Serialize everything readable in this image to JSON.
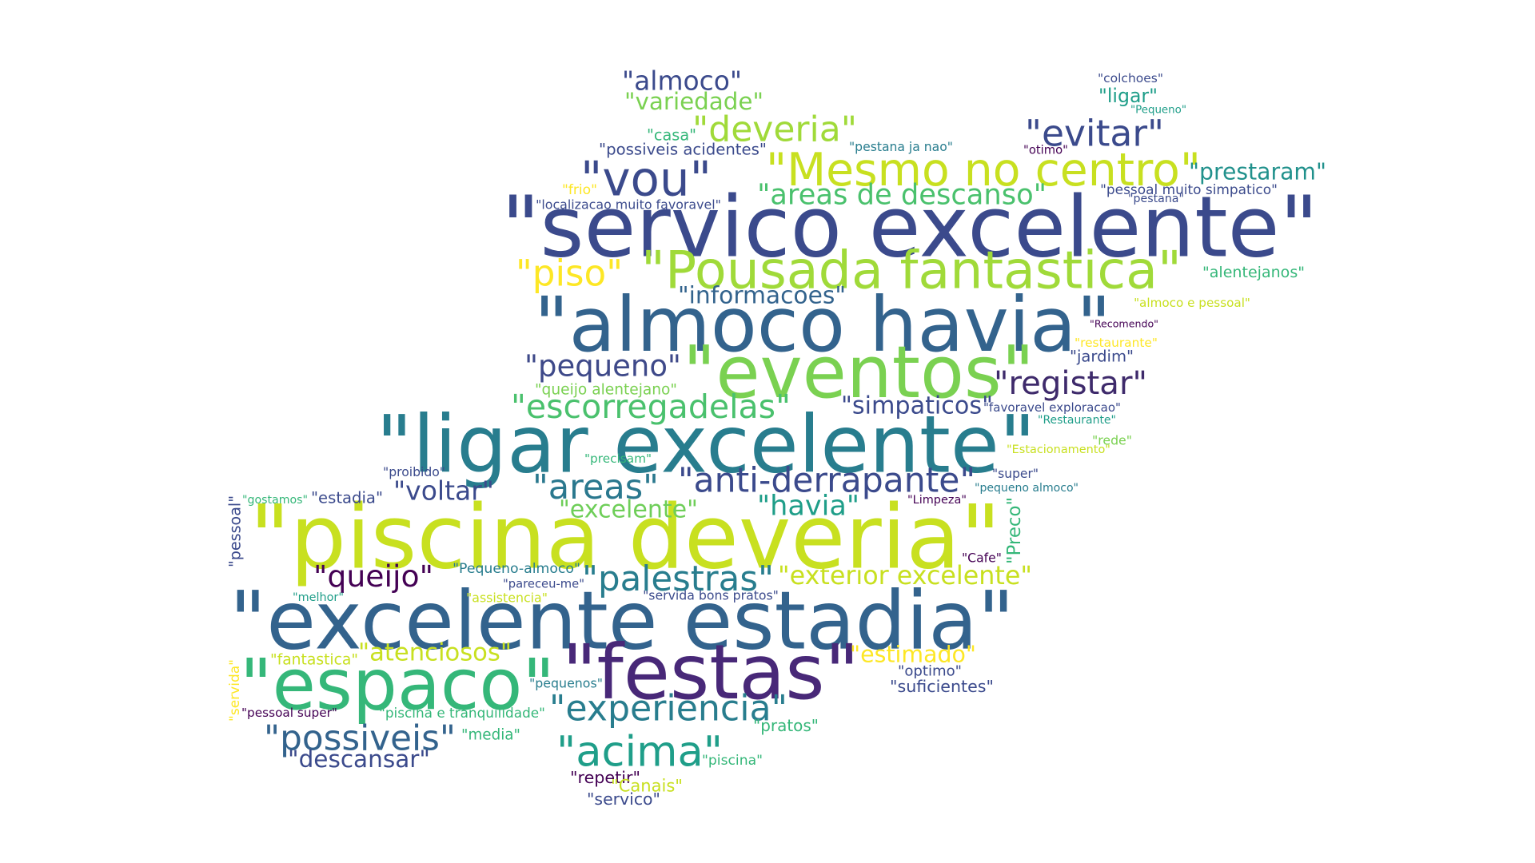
{
  "palette": {
    "dark_purple": "#440154",
    "indigo": "#3b4a8c",
    "blue": "#33638d",
    "teal_blue": "#287d8e",
    "teal": "#1f9e89",
    "green": "#35b779",
    "light_green": "#6ece58",
    "lime": "#b5de2b",
    "yellow": "#fde725"
  },
  "words": [
    {
      "text": "\"servico excelente\"",
      "color": "#3b4a8c"
    },
    {
      "text": "\"almoco havia\"",
      "color": "#33638d"
    },
    {
      "text": "\"piscina deveria\"",
      "color": "#c8e020"
    },
    {
      "text": "\"excelente estadia\"",
      "color": "#33638d"
    },
    {
      "text": "\"ligar excelente\"",
      "color": "#287d8e"
    },
    {
      "text": "\"eventos\"",
      "color": "#7ad151"
    },
    {
      "text": "\"Pousada fantastica\"",
      "color": "#a0da39"
    },
    {
      "text": "\"Mesmo no centro\"",
      "color": "#c8e020"
    },
    {
      "text": "\"espaco\"",
      "color": "#35b779"
    },
    {
      "text": "\"festas\"",
      "color": "#482878"
    },
    {
      "text": "\"vou\"",
      "color": "#3b4a8c"
    },
    {
      "text": "\"acima\"",
      "color": "#1f9e89"
    },
    {
      "text": "\"experiencia\"",
      "color": "#287d8e"
    },
    {
      "text": "\"palestras\"",
      "color": "#287d8e"
    },
    {
      "text": "\"anti-derrapante\"",
      "color": "#3b4a8c"
    },
    {
      "text": "\"areas\"",
      "color": "#2a788e"
    },
    {
      "text": "\"escorregadelas\"",
      "color": "#4ac16d"
    },
    {
      "text": "\"pequeno\"",
      "color": "#3e4989"
    },
    {
      "text": "\"registar\"",
      "color": "#3e2a6b"
    },
    {
      "text": "\"areas de descanso\"",
      "color": "#4ac16d"
    },
    {
      "text": "\"deveria\"",
      "color": "#a0da39"
    },
    {
      "text": "\"evitar\"",
      "color": "#3b4a8c"
    },
    {
      "text": "\"prestaram\"",
      "color": "#21918c"
    },
    {
      "text": "\"piso\"",
      "color": "#fde725"
    },
    {
      "text": "\"almoco\"",
      "color": "#3b4a8c"
    },
    {
      "text": "\"possiveis\"",
      "color": "#33638d"
    },
    {
      "text": "\"descansar\"",
      "color": "#3b4a8c"
    },
    {
      "text": "\"queijo\"",
      "color": "#440154"
    },
    {
      "text": "\"informacoes\"",
      "color": "#33638d"
    },
    {
      "text": "\"simpaticos\"",
      "color": "#3b4a8c"
    },
    {
      "text": "\"havia\"",
      "color": "#1f9e89"
    },
    {
      "text": "\"voltar\"",
      "color": "#3b4a8c"
    },
    {
      "text": "\"variedade\"",
      "color": "#7ad151"
    },
    {
      "text": "\"ligar\"",
      "color": "#1f9e89"
    },
    {
      "text": "\"exterior excelente\"",
      "color": "#c8e020"
    },
    {
      "text": "\"excelente\"",
      "color": "#6ece58"
    },
    {
      "text": "\"atenciosos\"",
      "color": "#c8e020"
    },
    {
      "text": "\"estimado\"",
      "color": "#fde725"
    },
    {
      "text": "\"possiveis acidentes\"",
      "color": "#3b4a8c"
    },
    {
      "text": "\"pessoal muito simpatico\"",
      "color": "#3b4a8c"
    },
    {
      "text": "\"localizacao muito favoravel\"",
      "color": "#3b4a8c"
    },
    {
      "text": "\"alentejanos\"",
      "color": "#35b779"
    },
    {
      "text": "\"almoco e pessoal\"",
      "color": "#c8e020"
    },
    {
      "text": "\"Recomendo\"",
      "color": "#440154"
    },
    {
      "text": "\"restaurante\"",
      "color": "#fde725"
    },
    {
      "text": "\"jardim\"",
      "color": "#3b4a8c"
    },
    {
      "text": "\"queijo alentejano\"",
      "color": "#7ad151"
    },
    {
      "text": "\"favoravel exploracao\"",
      "color": "#3b4a8c"
    },
    {
      "text": "\"Restaurante\"",
      "color": "#1f9e89"
    },
    {
      "text": "\"rede\"",
      "color": "#7ad151"
    },
    {
      "text": "\"Estacionamento\"",
      "color": "#c8e020"
    },
    {
      "text": "\"precisam\"",
      "color": "#35b779"
    },
    {
      "text": "\"proibido\"",
      "color": "#3b4a8c"
    },
    {
      "text": "\"super\"",
      "color": "#3b4a8c"
    },
    {
      "text": "\"pequeno almoco\"",
      "color": "#287d8e"
    },
    {
      "text": "\"gostamos\"",
      "color": "#35b779"
    },
    {
      "text": "\"estadia\"",
      "color": "#3b4a8c"
    },
    {
      "text": "\"Limpeza\"",
      "color": "#440154"
    },
    {
      "text": "\"Preco\"",
      "color": "#35b779"
    },
    {
      "text": "\"pessoal\"",
      "color": "#3b4a8c"
    },
    {
      "text": "\"Cafe\"",
      "color": "#440154"
    },
    {
      "text": "\"Pequeno-almoco\"",
      "color": "#287d8e"
    },
    {
      "text": "\"pareceu-me\"",
      "color": "#3b4a8c"
    },
    {
      "text": "\"servida bons pratos\"",
      "color": "#3b4a8c"
    },
    {
      "text": "\"melhor\"",
      "color": "#1f9e89"
    },
    {
      "text": "\"assistencia\"",
      "color": "#c8e020"
    },
    {
      "text": "\"fantastica\"",
      "color": "#c8e020"
    },
    {
      "text": "\"optimo\"",
      "color": "#3b4a8c"
    },
    {
      "text": "\"suficientes\"",
      "color": "#3b4a8c"
    },
    {
      "text": "\"pequenos\"",
      "color": "#287d8e"
    },
    {
      "text": "\"servida\"",
      "color": "#fde725"
    },
    {
      "text": "\"pessoal super\"",
      "color": "#440154"
    },
    {
      "text": "\"piscina e tranquilidade\"",
      "color": "#35b779"
    },
    {
      "text": "\"pratos\"",
      "color": "#35b779"
    },
    {
      "text": "\"media\"",
      "color": "#35b779"
    },
    {
      "text": "\"piscina\"",
      "color": "#35b779"
    },
    {
      "text": "\"repetir\"",
      "color": "#440154"
    },
    {
      "text": "\"Canais\"",
      "color": "#c8e020"
    },
    {
      "text": "\"servico\"",
      "color": "#3b4a8c"
    },
    {
      "text": "\"colchoes\"",
      "color": "#3b4a8c"
    },
    {
      "text": "\"Pequeno\"",
      "color": "#1f9e89"
    },
    {
      "text": "\"casa\"",
      "color": "#35b779"
    },
    {
      "text": "\"pestana ja nao\"",
      "color": "#287d8e"
    },
    {
      "text": "\"otimo\"",
      "color": "#440154"
    },
    {
      "text": "\"frio\"",
      "color": "#fde725"
    },
    {
      "text": "\"pestana\"",
      "color": "#3b4a8c"
    }
  ]
}
